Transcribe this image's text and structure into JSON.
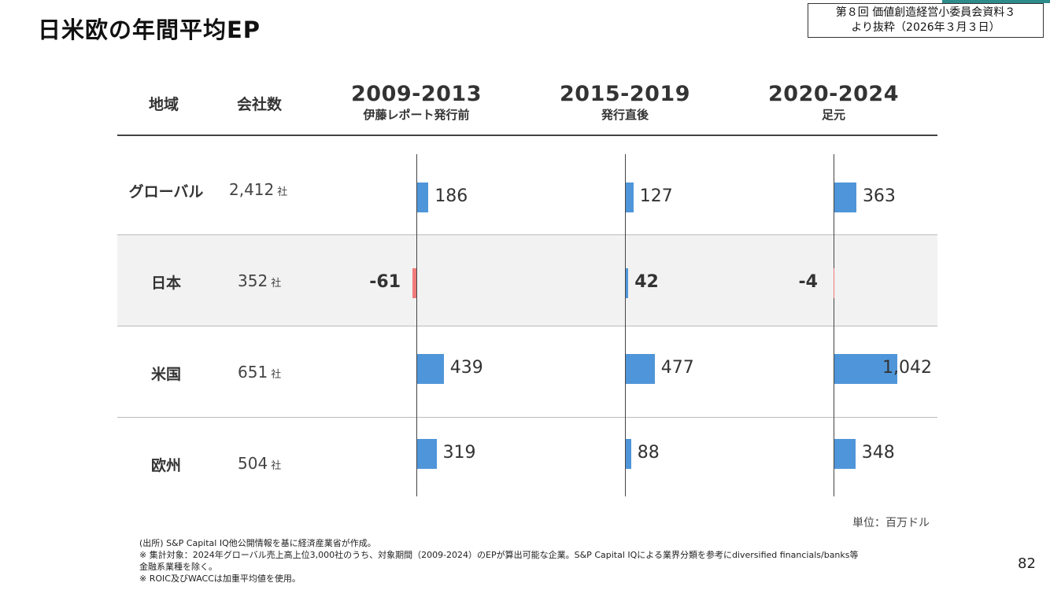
{
  "title": "日米欧の年間平均EP",
  "source_box": {
    "line1": "第８回 価値創造経営小委員会資料３",
    "line2": "より抜粋（2026年３月３日）"
  },
  "headers": {
    "region": "地域",
    "count": "会社数"
  },
  "colors": {
    "positive": "#4f95d9",
    "negative": "#f07b7b"
  },
  "chart_data": {
    "type": "bar",
    "orientation": "horizontal",
    "periods": [
      {
        "year": "2009-2013",
        "label": "伊藤レポート発行前"
      },
      {
        "year": "2015-2019",
        "label": "発行直後"
      },
      {
        "year": "2020-2024",
        "label": "足元"
      }
    ],
    "rows": [
      {
        "region": "グローバル",
        "count": "2,412",
        "count_unit": "社",
        "values": [
          186,
          127,
          363
        ],
        "labels": [
          "186",
          "127",
          "363"
        ],
        "bold": false
      },
      {
        "region": "日本",
        "count": "352",
        "count_unit": "社",
        "values": [
          -61,
          42,
          -4
        ],
        "labels": [
          "-61",
          "42",
          "-4"
        ],
        "bold": true
      },
      {
        "region": "米国",
        "count": "651",
        "count_unit": "社",
        "values": [
          439,
          477,
          1042
        ],
        "labels": [
          "439",
          "477",
          "1,042"
        ],
        "bold": false
      },
      {
        "region": "欧州",
        "count": "504",
        "count_unit": "社",
        "values": [
          319,
          88,
          348
        ],
        "labels": [
          "319",
          "88",
          "348"
        ],
        "bold": false
      }
    ],
    "unit_label": "単位：百万ドル"
  },
  "notes": [
    "(出所) S&P Capital IQ他公開情報を基に経済産業省が作成。",
    "※  集計対象：2024年グローバル売上高上位3,000社のうち、対象期間（2009-2024）のEPが算出可能な企業。S&P Capital IQによる業界分類を参考にdiversified financials/banks等",
    "      金融系業種を除く。",
    "※  ROIC及びWACCは加重平均値を使用。"
  ],
  "page_number": "82"
}
